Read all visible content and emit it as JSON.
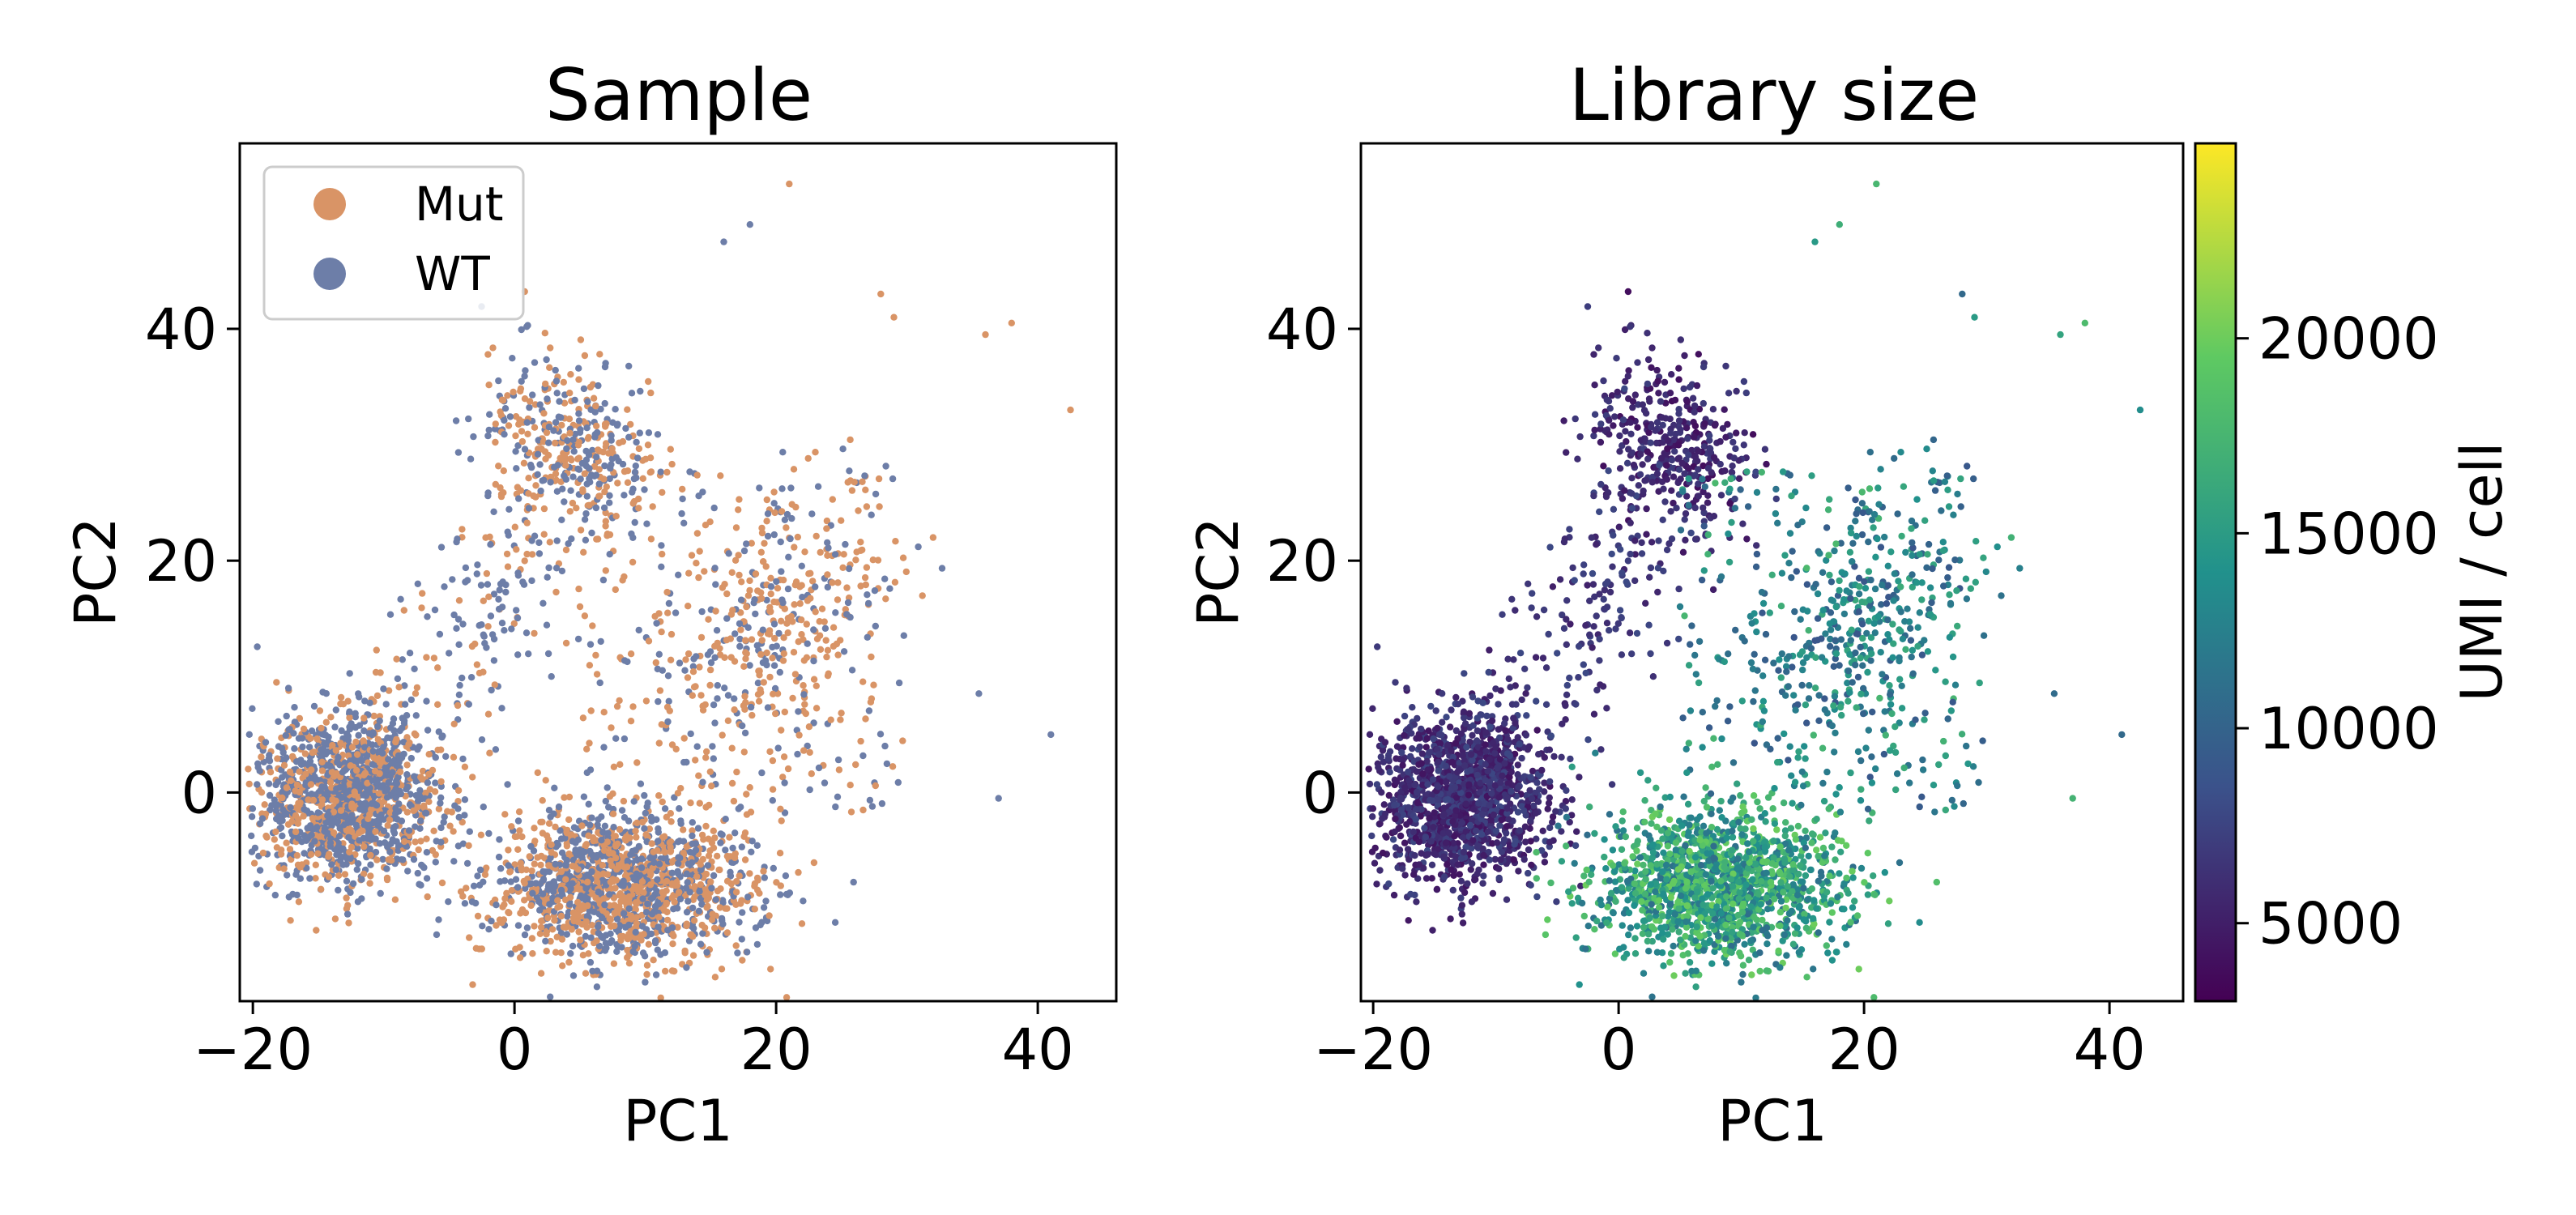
{
  "chart_data": [
    {
      "type": "scatter",
      "title": "Sample",
      "xlabel": "PC1",
      "ylabel": "PC2",
      "xlim": [
        -21,
        46
      ],
      "ylim": [
        -18,
        56
      ],
      "xticks": [
        -20,
        0,
        20,
        40
      ],
      "yticks": [
        0,
        20,
        40
      ],
      "xtick_labels": [
        "−20",
        "0",
        "20",
        "40"
      ],
      "ytick_labels": [
        "0",
        "20",
        "40"
      ],
      "grid": false,
      "legend": {
        "placement": "top-left"
      },
      "series": [
        {
          "name": "Mut",
          "color": "#d99466"
        },
        {
          "name": "WT",
          "color": "#6d7ea8"
        }
      ],
      "clusters": [
        {
          "label": "left cluster",
          "center": [
            -13,
            -0.5
          ],
          "spread": [
            3.5,
            3.5
          ]
        },
        {
          "label": "bottom cluster",
          "center": [
            8,
            -8
          ],
          "spread": [
            5,
            3.2
          ]
        },
        {
          "label": "upper arm",
          "center": [
            4,
            30
          ],
          "spread": [
            3,
            4
          ]
        },
        {
          "label": "right arm",
          "center": [
            20,
            14
          ],
          "spread": [
            4,
            6
          ]
        }
      ],
      "outlier_points": [
        {
          "x": 21,
          "y": 52.5,
          "series": "Mut"
        },
        {
          "x": 18,
          "y": 49,
          "series": "WT"
        },
        {
          "x": 16,
          "y": 47.5,
          "series": "WT"
        },
        {
          "x": 28,
          "y": 43,
          "series": "Mut"
        },
        {
          "x": 29,
          "y": 41,
          "series": "Mut"
        },
        {
          "x": 36,
          "y": 39.5,
          "series": "Mut"
        },
        {
          "x": 38,
          "y": 40.5,
          "series": "Mut"
        },
        {
          "x": 42.5,
          "y": 33,
          "series": "Mut"
        },
        {
          "x": 32,
          "y": 22,
          "series": "Mut"
        },
        {
          "x": 41,
          "y": 5,
          "series": "WT"
        },
        {
          "x": 37,
          "y": -0.5,
          "series": "WT"
        }
      ]
    },
    {
      "type": "scatter",
      "title": "Library size",
      "xlabel": "PC1",
      "ylabel": "PC2",
      "xlim": [
        -21,
        46
      ],
      "ylim": [
        -18,
        56
      ],
      "xticks": [
        -20,
        0,
        20,
        40
      ],
      "yticks": [
        0,
        20,
        40
      ],
      "xtick_labels": [
        "−20",
        "0",
        "20",
        "40"
      ],
      "ytick_labels": [
        "0",
        "20",
        "40"
      ],
      "grid": false,
      "colorbar": {
        "label": "UMI / cell",
        "range": [
          3000,
          25000
        ],
        "ticks": [
          5000,
          10000,
          15000,
          20000
        ],
        "tick_labels": [
          "5000",
          "10000",
          "15000",
          "20000"
        ],
        "colormap": "viridis",
        "colors": [
          "#440154",
          "#3b528b",
          "#21918c",
          "#5ec962",
          "#fde725"
        ]
      },
      "cluster_umi": [
        {
          "label": "left cluster",
          "umi": 6000
        },
        {
          "label": "bottom cluster",
          "umi": 15500
        },
        {
          "label": "upper arm",
          "umi": 5500
        },
        {
          "label": "right arm",
          "umi": 12500
        }
      ]
    }
  ]
}
